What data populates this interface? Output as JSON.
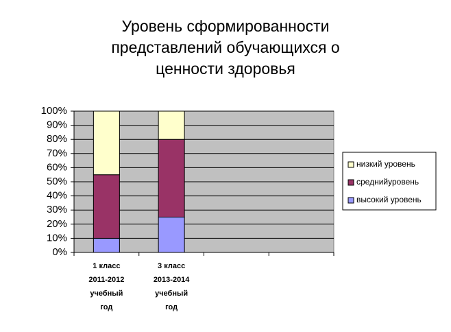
{
  "chart_data": {
    "type": "stacked_bar",
    "title": [
      "Уровень сформированности",
      "представлений обучающихся о",
      "ценности здоровья"
    ],
    "categories": [
      [
        "1 класс",
        "2011-2012",
        "учебный",
        "год"
      ],
      [
        "3 класс",
        "2013-2014",
        "учебный",
        "год"
      ],
      null,
      null
    ],
    "series": [
      {
        "name": "высокий уровень",
        "color": "#9999ff",
        "values": [
          10,
          25,
          null,
          null
        ]
      },
      {
        "name": "среднийуровень",
        "color": "#993366",
        "values": [
          45,
          55,
          null,
          null
        ]
      },
      {
        "name": "низкий уровень",
        "color": "#ffffcc",
        "values": [
          45,
          20,
          null,
          null
        ]
      }
    ],
    "ylim": [
      0,
      100
    ],
    "yticks": [
      {
        "value": 0,
        "label": "0%"
      },
      {
        "value": 10,
        "label": "10%"
      },
      {
        "value": 20,
        "label": "20%"
      },
      {
        "value": 30,
        "label": "30%"
      },
      {
        "value": 40,
        "label": "40%"
      },
      {
        "value": 50,
        "label": "50%"
      },
      {
        "value": 60,
        "label": "60%"
      },
      {
        "value": 70,
        "label": "70%"
      },
      {
        "value": 80,
        "label": "80%"
      },
      {
        "value": 90,
        "label": "90%"
      },
      {
        "value": 100,
        "label": "100%"
      }
    ],
    "grid": true,
    "legend": "right"
  }
}
